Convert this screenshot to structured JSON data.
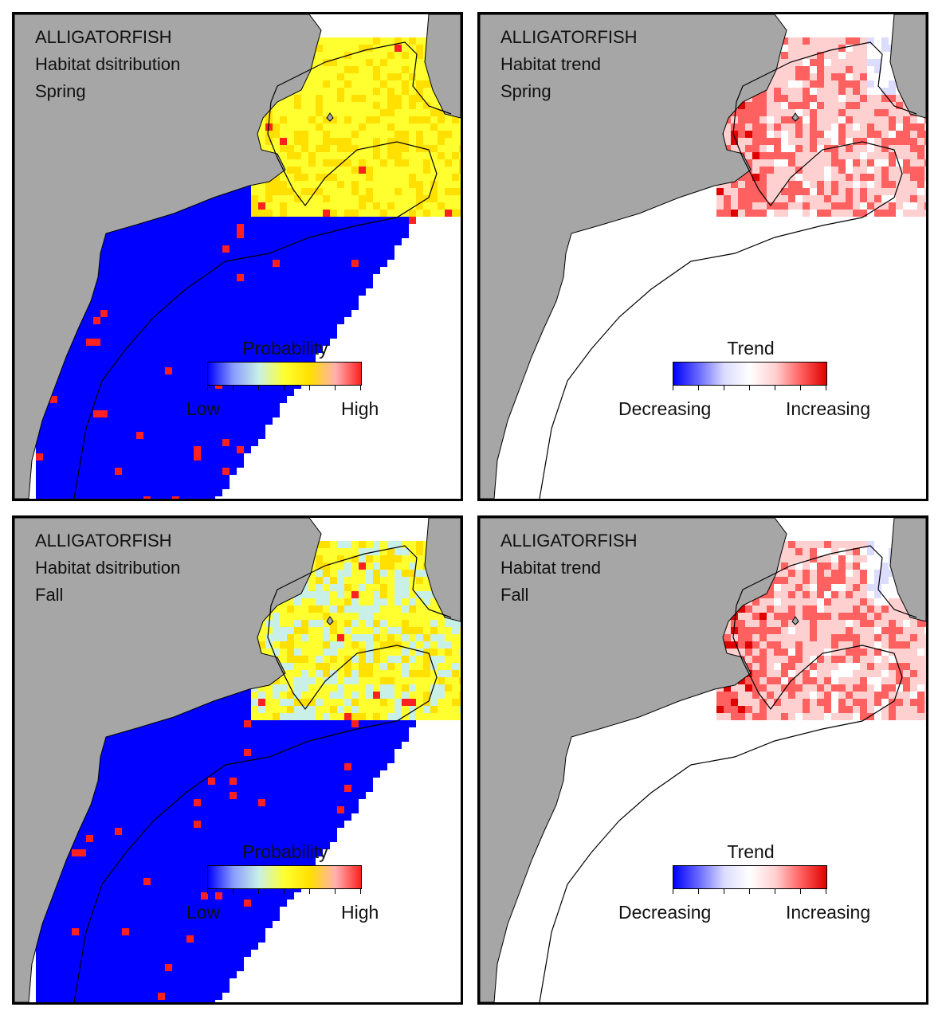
{
  "panels": [
    {
      "species": "ALLIGATORFISH",
      "metric": "Habitat dsitribution",
      "season": "Spring",
      "legend": {
        "title": "Probability",
        "low": "Low",
        "high": "High"
      },
      "colors": [
        "#0000ff",
        "#8a9cff",
        "#c8f0e6",
        "#ffff30",
        "#ffe000",
        "#ffb0b0",
        "#ff2020"
      ]
    },
    {
      "species": "ALLIGATORFISH",
      "metric": "Habitat trend",
      "season": "Spring",
      "legend": {
        "title": "Trend",
        "low": "Decreasing",
        "high": "Increasing"
      },
      "colors": [
        "#0000ff",
        "#6a6aff",
        "#dcdcff",
        "#ffffff",
        "#ffd0d0",
        "#ff6060",
        "#e00000"
      ]
    },
    {
      "species": "ALLIGATORFISH",
      "metric": "Habitat dsitribution",
      "season": "Fall",
      "legend": {
        "title": "Probability",
        "low": "Low",
        "high": "High"
      },
      "colors": [
        "#0000ff",
        "#8a9cff",
        "#c8f0e6",
        "#ffff30",
        "#ffe000",
        "#ffb0b0",
        "#ff2020"
      ]
    },
    {
      "species": "ALLIGATORFISH",
      "metric": "Habitat trend",
      "season": "Fall",
      "legend": {
        "title": "Trend",
        "low": "Decreasing",
        "high": "Increasing"
      },
      "colors": [
        "#0000ff",
        "#6a6aff",
        "#dcdcff",
        "#ffffff",
        "#ffd0d0",
        "#ff6060",
        "#e00000"
      ]
    }
  ],
  "land_color": "#a6a6a6"
}
